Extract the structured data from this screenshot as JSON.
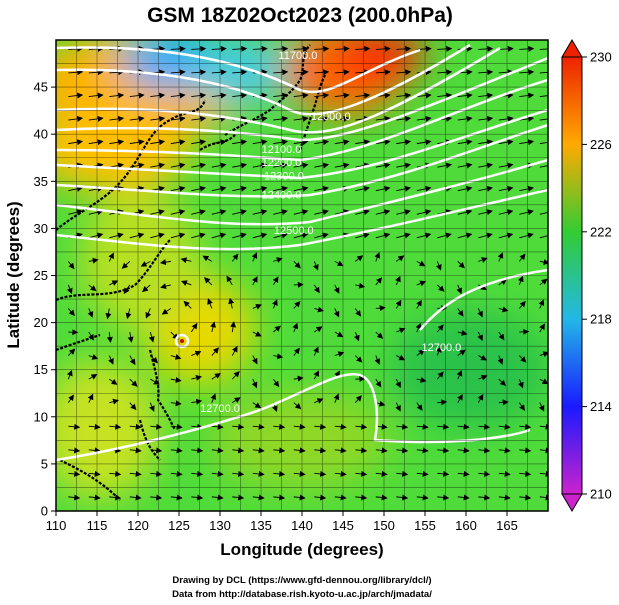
{
  "title": "GSM 18Z02Oct2023 (200.0hPa)",
  "credits": [
    "Drawing by DCL (https://www.gfd-dennou.org/library/dcl/)",
    "Data from http://database.rish.kyoto-u.ac.jp/arch/jmadata/"
  ],
  "chart_data": {
    "type": "heatmap",
    "xlabel": "Longitude (degrees)",
    "ylabel": "Latitude  (degrees)",
    "xlim": [
      110,
      170
    ],
    "ylim": [
      0,
      50
    ],
    "xticks": [
      110,
      115,
      120,
      125,
      130,
      135,
      140,
      145,
      150,
      155,
      160,
      165
    ],
    "yticks": [
      0,
      5,
      10,
      15,
      20,
      25,
      30,
      35,
      40,
      45
    ],
    "colorbar": {
      "min": 210,
      "max": 230,
      "ticks": [
        210,
        214,
        218,
        222,
        226,
        230
      ],
      "colors": [
        "#cc22cc",
        "#1a1aff",
        "#22b8e8",
        "#33cc33",
        "#ffaa00",
        "#ee2200"
      ]
    },
    "contour_labels": [
      {
        "text": "11700.0",
        "lon": 139.5,
        "lat": 48.0
      },
      {
        "text": "12000.0",
        "lon": 143.5,
        "lat": 41.5
      },
      {
        "text": "12100.0",
        "lon": 137.5,
        "lat": 38.0
      },
      {
        "text": "12200.0",
        "lon": 137.5,
        "lat": 36.6
      },
      {
        "text": "12300.0",
        "lon": 137.8,
        "lat": 35.2
      },
      {
        "text": "12400.0",
        "lon": 137.5,
        "lat": 33.2
      },
      {
        "text": "12500.0",
        "lon": 139.0,
        "lat": 29.4
      },
      {
        "text": "12700.0",
        "lon": 157.0,
        "lat": 17.0
      },
      {
        "text": "12700.0",
        "lon": 130.0,
        "lat": 10.5
      }
    ]
  }
}
